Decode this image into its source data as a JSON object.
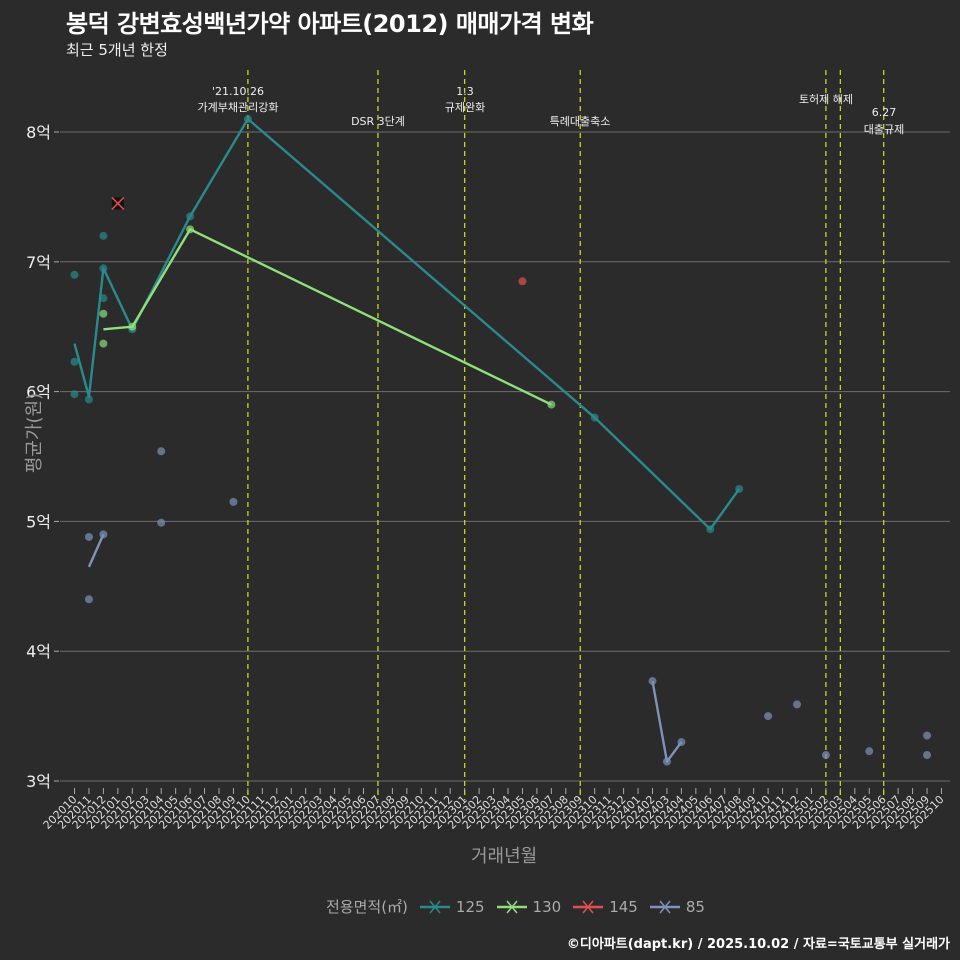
{
  "header": {
    "title": "봉덕 강변효성백년가약 아파트(2012) 매매가격 변화",
    "subtitle": "최근 5개년 한정"
  },
  "axes": {
    "xlabel": "거래년월",
    "ylabel": "평균가(원)"
  },
  "legend": {
    "title": "전용면적(㎡)",
    "items": [
      {
        "label": "125",
        "color": "#2a8a8c"
      },
      {
        "label": "130",
        "color": "#8fe07a"
      },
      {
        "label": "145",
        "color": "#e0504e"
      },
      {
        "label": "85",
        "color": "#7d93b8"
      }
    ]
  },
  "caption": "©디아파트(dapt.kr) / 2025.10.02 / 자료=국토교통부 실거래가",
  "events": [
    {
      "month": "202110",
      "line1": "'21.10.26",
      "line2": "가계부채관리강화"
    },
    {
      "month": "202207",
      "line1": "",
      "line2": "DSR 3단계"
    },
    {
      "month": "202301",
      "line1": "1.3",
      "line2": "규제완화"
    },
    {
      "month": "202309",
      "line1": "",
      "line2": "특례대출축소"
    },
    {
      "month": "202502",
      "line1": "",
      "line2": "토허제 해제"
    },
    {
      "month": "202503",
      "line1": "",
      "line2": ""
    },
    {
      "month": "202506",
      "line1": "6.27",
      "line2": "대출규제"
    }
  ],
  "chart_data": {
    "type": "line",
    "title": "봉덕 강변효성백년가약 아파트(2012) 매매가격 변화",
    "subtitle": "최근 5개년 한정",
    "xlabel": "거래년월",
    "ylabel": "평균가(원)",
    "x_ticks": [
      "202010",
      "202011",
      "202012",
      "202101",
      "202102",
      "202103",
      "202104",
      "202105",
      "202106",
      "202107",
      "202108",
      "202109",
      "202110",
      "202111",
      "202112",
      "202201",
      "202202",
      "202203",
      "202204",
      "202205",
      "202206",
      "202207",
      "202208",
      "202209",
      "202210",
      "202211",
      "202212",
      "202301",
      "202302",
      "202303",
      "202304",
      "202305",
      "202306",
      "202307",
      "202308",
      "202309",
      "202310",
      "202311",
      "202312",
      "202401",
      "202402",
      "202403",
      "202404",
      "202405",
      "202406",
      "202407",
      "202408",
      "202409",
      "202410",
      "202411",
      "202412",
      "202501",
      "202502",
      "202503",
      "202504",
      "202505",
      "202506",
      "202507",
      "202508",
      "202509",
      "202510"
    ],
    "y_ticks": [
      "3억",
      "4억",
      "5억",
      "6억",
      "7억",
      "8억"
    ],
    "ylim": [
      2.95,
      8.45
    ],
    "unit": "억",
    "grid": true,
    "legend_position": "bottom",
    "series": [
      {
        "name": "125",
        "color": "#2a8a8c",
        "line": [
          {
            "x": "202010",
            "y": 6.37
          },
          {
            "x": "202011",
            "y": 5.96
          },
          {
            "x": "202012",
            "y": 6.95
          },
          {
            "x": "202102",
            "y": 6.48
          },
          {
            "x": "202106",
            "y": 7.35
          },
          {
            "x": "202110",
            "y": 8.1
          },
          {
            "x": "202310",
            "y": 5.8
          },
          {
            "x": "202406",
            "y": 4.94
          },
          {
            "x": "202408",
            "y": 5.25
          }
        ],
        "points": [
          {
            "x": "202010",
            "y": 6.9
          },
          {
            "x": "202010",
            "y": 6.23
          },
          {
            "x": "202010",
            "y": 5.98
          },
          {
            "x": "202011",
            "y": 5.94
          },
          {
            "x": "202012",
            "y": 7.2
          },
          {
            "x": "202012",
            "y": 6.95
          },
          {
            "x": "202012",
            "y": 6.72
          },
          {
            "x": "202102",
            "y": 6.48
          },
          {
            "x": "202106",
            "y": 7.35
          },
          {
            "x": "202110",
            "y": 8.1
          },
          {
            "x": "202310",
            "y": 5.8
          },
          {
            "x": "202406",
            "y": 4.94
          },
          {
            "x": "202408",
            "y": 5.25
          }
        ]
      },
      {
        "name": "130",
        "color": "#8fe07a",
        "line": [
          {
            "x": "202012",
            "y": 6.48
          },
          {
            "x": "202102",
            "y": 6.5
          },
          {
            "x": "202106",
            "y": 7.25
          },
          {
            "x": "202307",
            "y": 5.9
          }
        ],
        "points": [
          {
            "x": "202012",
            "y": 6.6
          },
          {
            "x": "202012",
            "y": 6.37
          },
          {
            "x": "202102",
            "y": 6.5
          },
          {
            "x": "202106",
            "y": 7.25
          },
          {
            "x": "202307",
            "y": 5.9
          }
        ]
      },
      {
        "name": "145",
        "color": "#e0504e",
        "line": [],
        "points": [
          {
            "x": "202101",
            "y": 7.45,
            "marker": "x"
          },
          {
            "x": "202305",
            "y": 6.85
          }
        ]
      },
      {
        "name": "85",
        "color": "#7d93b8",
        "line": [
          {
            "x": "202011",
            "y": 4.65
          },
          {
            "x": "202012",
            "y": 4.9
          }
        ],
        "line2": [
          {
            "x": "202402",
            "y": 3.77
          },
          {
            "x": "202403",
            "y": 3.15
          },
          {
            "x": "202404",
            "y": 3.3
          }
        ],
        "points": [
          {
            "x": "202011",
            "y": 4.88
          },
          {
            "x": "202011",
            "y": 4.4
          },
          {
            "x": "202012",
            "y": 4.9
          },
          {
            "x": "202104",
            "y": 5.54
          },
          {
            "x": "202104",
            "y": 4.99
          },
          {
            "x": "202109",
            "y": 5.15
          },
          {
            "x": "202402",
            "y": 3.77
          },
          {
            "x": "202403",
            "y": 3.15
          },
          {
            "x": "202404",
            "y": 3.3
          },
          {
            "x": "202410",
            "y": 3.5
          },
          {
            "x": "202412",
            "y": 3.59
          },
          {
            "x": "202502",
            "y": 3.2
          },
          {
            "x": "202505",
            "y": 3.23
          },
          {
            "x": "202509",
            "y": 3.35
          },
          {
            "x": "202509",
            "y": 3.2
          }
        ]
      }
    ]
  }
}
